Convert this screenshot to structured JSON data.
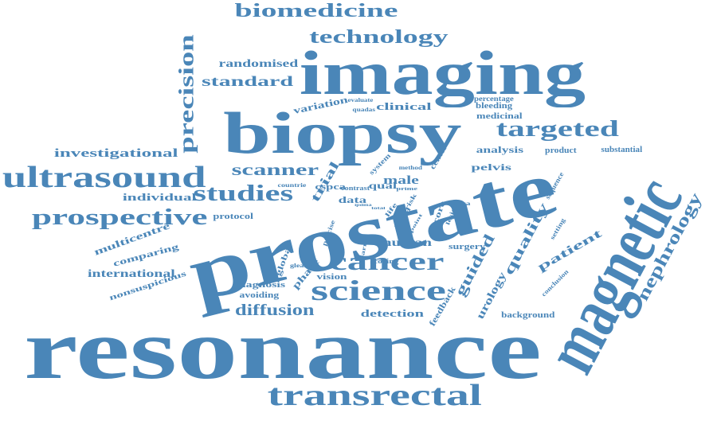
{
  "colors": {
    "word": "#4a86b8",
    "word_light": "#5b93c3",
    "background": "#ffffff"
  },
  "words": {
    "resonance": "resonance",
    "prostate": "prostate",
    "magnetic": "magnetic",
    "imaging": "imaging",
    "biopsy": "biopsy",
    "transrectal": "transrectal",
    "ultrasound": "ultrasound",
    "science": "science",
    "cancer": "cancer",
    "studies": "studies",
    "prospective": "prospective",
    "targeted": "targeted",
    "biomedicine": "biomedicine",
    "technology": "technology",
    "precision": "precision",
    "nephrology": "nephrology",
    "diffusion": "diffusion",
    "scanner": "scanner",
    "quality": "quality",
    "guided": "guided",
    "standard": "standard",
    "randomised": "randomised",
    "investigational": "investigational",
    "individual": "individual",
    "human": "human",
    "patient": "patient",
    "urology": "urology",
    "trial": "trial",
    "international": "international",
    "clinical": "clinical",
    "pelvis": "pelvis",
    "detection": "detection",
    "multicentre": "multicentre",
    "comparing": "comparing",
    "nonsuspicious": "nonsuspicious",
    "protocol": "protocol",
    "diagnosis": "diagnosis",
    "avoiding": "avoiding",
    "phase": "phase",
    "vision": "vision",
    "global": "global",
    "gleason": "gleason",
    "countries": "countrie",
    "cspca": "cspca",
    "data": "data",
    "male": "male",
    "qual": "qual",
    "system": "system",
    "method": "method",
    "contrast": "contrast",
    "pathway": "pathway",
    "quadas": "quadas",
    "evaluate": "evaluate",
    "variation": "variation",
    "percentage": "percentage",
    "medicinal": "medicinal",
    "bleeding": "bleeding",
    "analysis": "analysis",
    "product": "product",
    "substantial": "substantial",
    "center": "center",
    "sequence": "sequence",
    "score": "score",
    "lesion": "lesion",
    "cspca_small": "cspca",
    "surgery": "surgery",
    "setting": "setting",
    "conclusion": "conclusion",
    "background": "background",
    "feedback": "feedback",
    "precise": "precise",
    "learnt": "learnt",
    "scoring": "scoring",
    "meta": "meta",
    "life": "life",
    "risk": "risk",
    "point": "point",
    "prime": "prime",
    "ipdma": "ipdma",
    "total": "total"
  }
}
